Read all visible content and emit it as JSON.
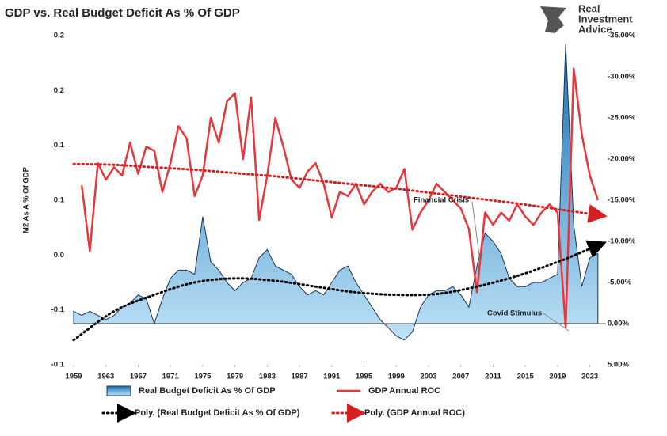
{
  "chart_data": {
    "type": "area-line",
    "title": "GDP vs. Real Budget Deficit As % Of GDP",
    "logo": [
      "Real",
      "Investment",
      "Advice"
    ],
    "ylabel": "M2 As A % Of GDP",
    "ylim": [
      -0.1,
      0.2
    ],
    "yticks": [
      {
        "value": 0.2,
        "label": "0.2"
      },
      {
        "value": 0.15,
        "label": "0.2"
      },
      0.1,
      {
        "value": 0.05,
        "label": "0.1"
      },
      {
        "value": 0,
        "label": "0.0"
      },
      {
        "value": -0.05,
        "label": "-0.1"
      },
      -0.1
    ],
    "y2lim": [
      -35,
      5
    ],
    "y2_reversed": true,
    "y2ticks": [
      {
        "value": -35,
        "label": "-35.00%"
      },
      {
        "value": -30,
        "label": "-30.00%"
      },
      {
        "value": -25,
        "label": "-25.00%"
      },
      {
        "value": -20,
        "label": "-20.00%"
      },
      {
        "value": -15,
        "label": "-15.00%"
      },
      {
        "value": -10,
        "label": "-10.00%"
      },
      {
        "value": -5,
        "label": "-5.00%"
      },
      {
        "value": 0,
        "label": "0.00%"
      },
      {
        "value": 5,
        "label": "5.00%"
      }
    ],
    "xlim": [
      1959,
      2025
    ],
    "xticks": [
      1959,
      1963,
      1967,
      1971,
      1975,
      1979,
      1983,
      1987,
      1991,
      1995,
      1999,
      2003,
      2007,
      2011,
      2015,
      2019,
      2023
    ],
    "x": [
      1959,
      1960,
      1961,
      1962,
      1963,
      1964,
      1965,
      1966,
      1967,
      1968,
      1969,
      1970,
      1971,
      1972,
      1973,
      1974,
      1975,
      1976,
      1977,
      1978,
      1979,
      1980,
      1981,
      1982,
      1983,
      1984,
      1985,
      1986,
      1987,
      1988,
      1989,
      1990,
      1991,
      1992,
      1993,
      1994,
      1995,
      1996,
      1997,
      1998,
      1999,
      2000,
      2001,
      2002,
      2003,
      2004,
      2005,
      2006,
      2007,
      2008,
      2009,
      2010,
      2011,
      2012,
      2013,
      2014,
      2015,
      2016,
      2017,
      2018,
      2019,
      2020,
      2021,
      2022,
      2023,
      2024
    ],
    "annotations": [
      "Financial Crisis",
      "Covid Stimulus"
    ],
    "series": [
      {
        "name": "Real Budget Deficit As % Of GDP",
        "kind": "area",
        "axis": "y2",
        "color": "#1a7fc1",
        "values": [
          -1.5,
          -1,
          -1.5,
          -1,
          -0.5,
          -1,
          -2,
          -2.5,
          -3.5,
          -3,
          0,
          -3,
          -5.5,
          -6.5,
          -6.5,
          -6,
          -13,
          -7.5,
          -6.5,
          -5,
          -4,
          -5,
          -5.5,
          -8,
          -9,
          -7,
          -6.5,
          -6,
          -4.5,
          -3.5,
          -4,
          -3.5,
          -5,
          -6.5,
          -7,
          -5,
          -3.5,
          -2,
          -0.5,
          0.5,
          1.5,
          2,
          1,
          -2,
          -3.5,
          -4,
          -4,
          -4.5,
          -3.5,
          -2,
          -7,
          -11,
          -10,
          -8.5,
          -5.5,
          -4.5,
          -4.5,
          -5,
          -5,
          -5.5,
          -6,
          -34,
          -12,
          -4.5,
          -8,
          -8.5
        ]
      },
      {
        "name": "GDP Annual ROC",
        "kind": "line",
        "axis": "y2",
        "color": "#e8363b",
        "values": [
          null,
          -16.8,
          -8.8,
          -19.5,
          -17.5,
          -19,
          -18,
          -22,
          -18.2,
          -21.5,
          -21,
          -16,
          -19.5,
          -24,
          -22.5,
          -15.5,
          -18,
          -25,
          -22,
          -27,
          -28,
          -20,
          -27.5,
          -12.6,
          -18,
          -25,
          -21.5,
          -17.5,
          -16.5,
          -18.5,
          -19.5,
          -17,
          -12.9,
          -16,
          -15.5,
          -17,
          -14.5,
          -16,
          -17,
          -16,
          -16.5,
          -18.8,
          -11.4,
          -13.5,
          -15,
          -17,
          -16,
          -15,
          -14,
          -11.5,
          -3.8,
          -13.5,
          -12,
          -13.5,
          -12.5,
          -14.5,
          -13,
          -12,
          -13.5,
          -14.5,
          -13.5,
          0.5,
          -31,
          -23,
          -18,
          -15
        ]
      },
      {
        "name": "Poly. (Real Budget Deficit As % Of GDP)",
        "kind": "poly",
        "axis": "y2",
        "color": "#000000",
        "x": [
          1959,
          1964,
          1969,
          1974,
          1979,
          1984,
          1989,
          1994,
          1999,
          2004,
          2009,
          2014,
          2019,
          2024
        ],
        "values": [
          2,
          -1.5,
          -3.5,
          -5,
          -5.5,
          -5.2,
          -4.5,
          -3.8,
          -3.5,
          -3.6,
          -4.5,
          -5.8,
          -7.5,
          -9.5
        ]
      },
      {
        "name": "Poly. (GDP Annual ROC)",
        "kind": "poly",
        "axis": "y2",
        "color": "#d42020",
        "x": [
          1959,
          1964,
          1969,
          1974,
          1979,
          1984,
          1989,
          1994,
          1999,
          2004,
          2009,
          2014,
          2019,
          2024
        ],
        "values": [
          -19.4,
          -19.3,
          -19,
          -18.7,
          -18.3,
          -17.9,
          -17.4,
          -16.9,
          -16.4,
          -15.8,
          -15.2,
          -14.6,
          -13.9,
          -13.2
        ]
      }
    ]
  }
}
